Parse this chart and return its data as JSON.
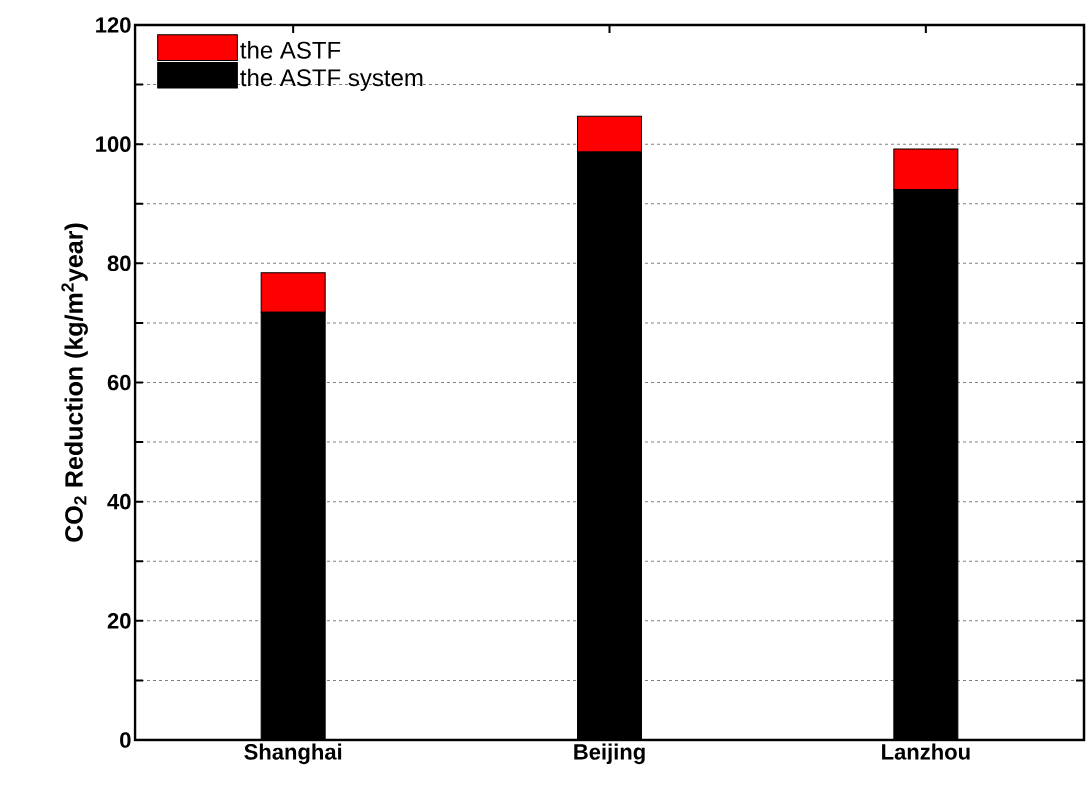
{
  "chart_data": {
    "type": "bar",
    "stacked": true,
    "ylabel": "CO$_{2}$ Reduction (kg/m$^{2}$year)",
    "categories": [
      "Shanghai",
      "Beijing",
      "Lanzhou"
    ],
    "series": [
      {
        "name": "the ASTF system",
        "color": "#000000",
        "values": [
          71.8,
          98.7,
          92.4
        ]
      },
      {
        "name": "the ASTF",
        "color": "#ff0000",
        "values": [
          6.6,
          6.0,
          6.8
        ]
      }
    ],
    "ylim": [
      0,
      120
    ],
    "yticks": [
      0,
      {
        "value": 10,
        "label": null
      },
      20,
      {
        "value": 30,
        "label": null
      },
      40,
      {
        "value": 50,
        "label": null
      },
      60,
      {
        "value": 70,
        "label": null
      },
      80,
      {
        "value": 90,
        "label": null
      },
      100,
      {
        "value": 110,
        "label": null
      },
      120
    ],
    "grid": "y",
    "legend": "top left"
  }
}
